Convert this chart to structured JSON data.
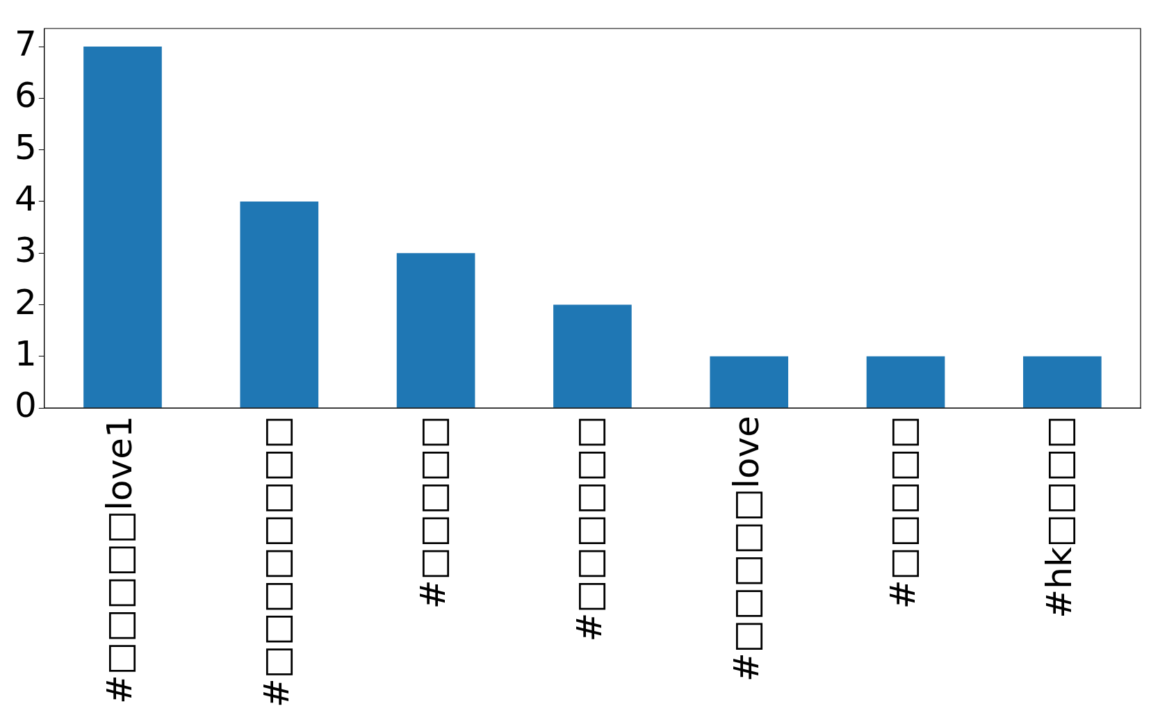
{
  "chart_data": {
    "type": "bar",
    "categories": [
      "#□□□□□love1",
      "#□□□□□□□□",
      "#□□□□□",
      "#□□□□□□",
      "#□□□□□love",
      "#□□□□□",
      "#hk□□□□"
    ],
    "values": [
      7,
      4,
      3,
      2,
      1,
      1,
      1
    ],
    "color": "#1f77b4",
    "ylim": [
      0,
      7.35
    ],
    "yticks": [
      0,
      1,
      2,
      3,
      4,
      5,
      6,
      7
    ],
    "grid": false,
    "legend": false
  }
}
